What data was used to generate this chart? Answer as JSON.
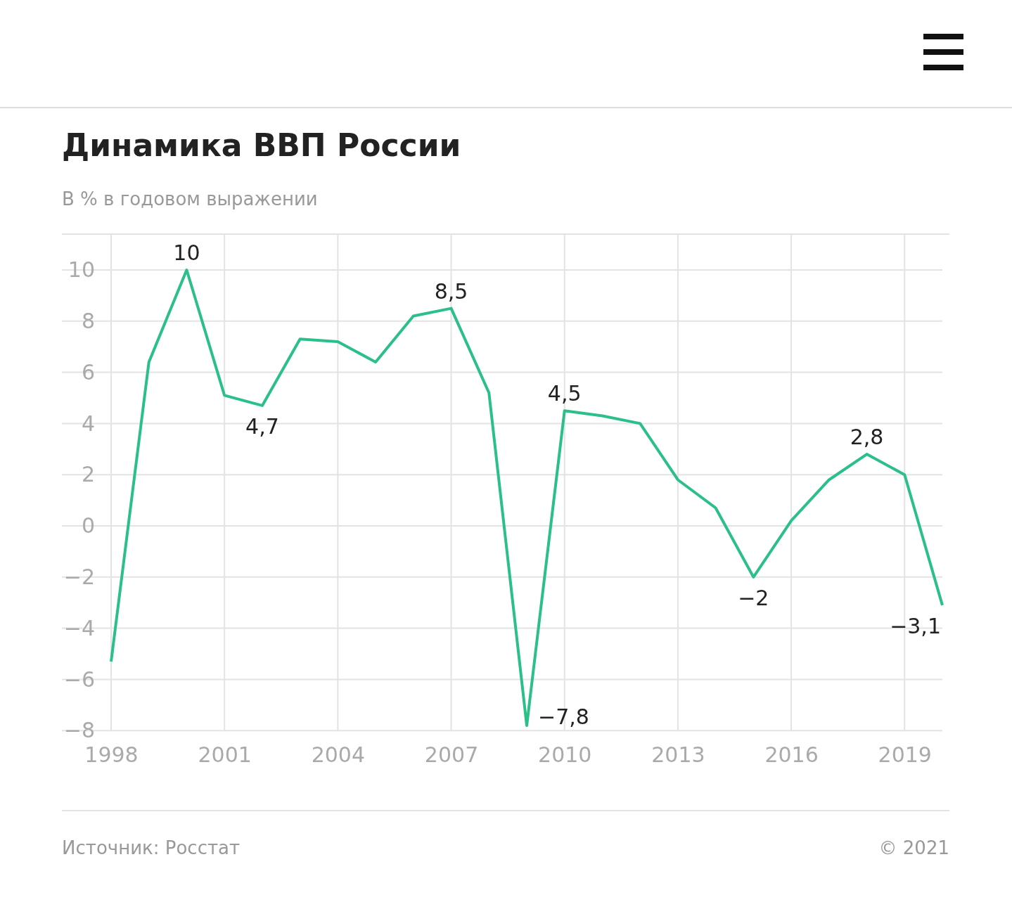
{
  "chart_data": {
    "type": "line",
    "title": "Динамика ВВП России",
    "subtitle": "В % в годовом выражении",
    "annotations": [
      "Источник: Росстат",
      "© 2021"
    ],
    "x": [
      1998,
      1999,
      2000,
      2001,
      2002,
      2003,
      2004,
      2005,
      2006,
      2007,
      2008,
      2009,
      2010,
      2011,
      2012,
      2013,
      2014,
      2015,
      2016,
      2017,
      2018,
      2019,
      2020
    ],
    "series": [
      {
        "color": "#2bbf8a",
        "values": [
          -5.3,
          6.4,
          10,
          5.1,
          4.7,
          7.3,
          7.2,
          6.4,
          8.2,
          8.5,
          5.2,
          -7.8,
          4.5,
          4.3,
          4.0,
          1.8,
          0.7,
          -2,
          0.2,
          1.8,
          2.8,
          2.0,
          -3.1
        ],
        "value_labels": [
          null,
          null,
          "10",
          null,
          "4,7",
          null,
          null,
          null,
          null,
          "8,5",
          null,
          "−7,8",
          "4,5",
          null,
          null,
          null,
          null,
          "−2",
          null,
          null,
          "2,8",
          null,
          "−3,1"
        ]
      }
    ],
    "xlim": [
      1998,
      2020
    ],
    "xticks": [
      1998,
      2001,
      2004,
      2007,
      2010,
      2013,
      2016,
      2019
    ],
    "ylim": [
      -8,
      11.4
    ],
    "yticks": [
      {
        "value": -8,
        "label": "−8"
      },
      {
        "value": -6,
        "label": "−6"
      },
      {
        "value": -4,
        "label": "−4"
      },
      {
        "value": -2,
        "label": "−2"
      },
      0,
      2,
      4,
      6,
      8,
      10
    ],
    "grid": true,
    "marker": "none",
    "line_style": "solid"
  }
}
